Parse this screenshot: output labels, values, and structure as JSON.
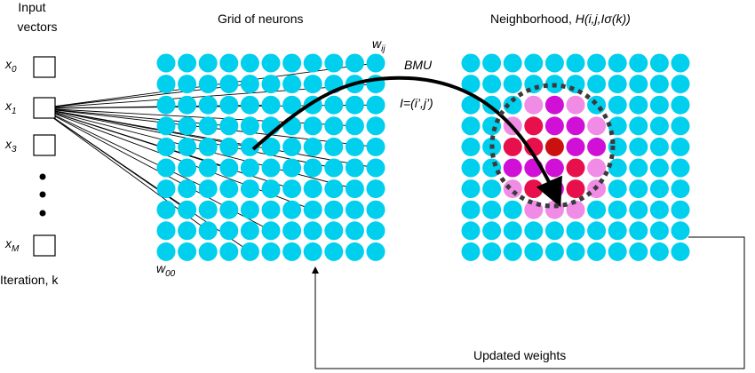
{
  "input_title": [
    "Input",
    "vectors"
  ],
  "inputs": [
    {
      "base": "x",
      "sub": "0"
    },
    {
      "base": "x",
      "sub": "1"
    },
    {
      "base": "x",
      "sub": "3"
    },
    {
      "base": "x",
      "sub": "M"
    }
  ],
  "iteration": "Iteration, k",
  "grid_title": "Grid of neurons",
  "neighborhood_title": {
    "text": "Neighborhood, ",
    "function": "H(i,j,Iσ(k))"
  },
  "weight_labels": [
    {
      "base": "w",
      "sub": "ij"
    },
    {
      "base": "w",
      "sub": "00"
    }
  ],
  "bmu": {
    "label": "BMU",
    "index": "I=(i’,j’)"
  },
  "feedback": "Updated weights"
}
